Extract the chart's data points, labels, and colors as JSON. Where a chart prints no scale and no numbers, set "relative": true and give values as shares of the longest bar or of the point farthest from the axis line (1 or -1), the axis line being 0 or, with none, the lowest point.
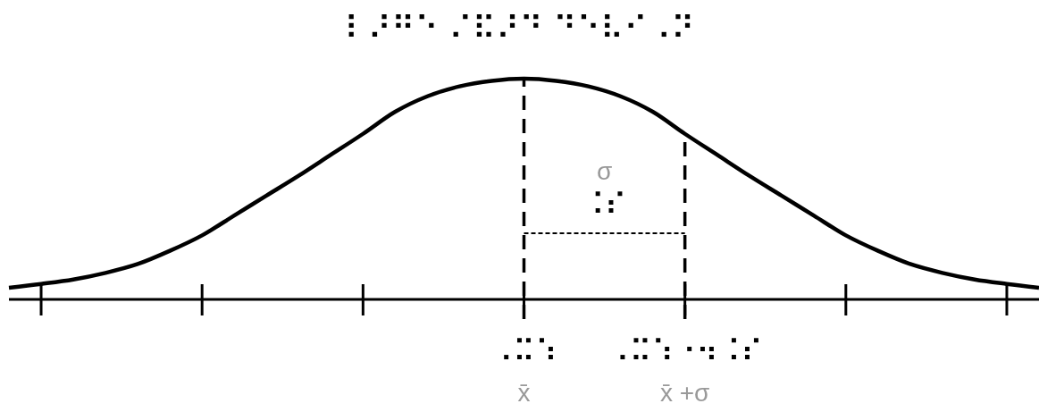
{
  "chart_data": {
    "type": "line",
    "title": "⠇⠜⠛⠑ ⠌⠯⠜⠙ ⠙⠑⠧⠊⠠⠝",
    "relative": true,
    "categories": [
      null,
      null,
      null,
      null,
      null,
      null,
      null,
      null,
      null,
      null,
      null,
      null,
      null,
      null,
      null,
      null,
      "⠠⠭⠱\nx̄",
      null,
      null,
      null,
      null,
      "⠠⠭⠱⠐⠲⠨⠎\nx̄ +σ",
      null,
      null,
      null,
      null,
      null,
      null,
      null,
      null,
      null,
      null,
      null
    ],
    "series": [
      {
        "color": "#000000",
        "values": [
          0.053,
          0.07,
          0.09,
          0.12,
          0.16,
          0.22,
          0.29,
          0.38,
          0.47,
          0.56,
          0.655,
          0.75,
          0.85,
          0.92,
          0.965,
          0.99,
          1,
          0.99,
          0.965,
          0.92,
          0.85,
          0.75,
          0.655,
          0.56,
          0.47,
          0.38,
          0.29,
          0.22,
          0.16,
          0.12,
          0.09,
          0.07,
          0.053
        ]
      }
    ],
    "ref_lines": [
      {
        "axis": "x",
        "value": "⠠⠭⠱\nx̄",
        "line_style": "dashed"
      },
      {
        "axis": "x",
        "value": "⠠⠭⠱⠐⠲⠨⠎\nx̄ +σ",
        "line_style": "dashed"
      }
    ],
    "annotations": [
      "σ\n⠨⠎"
    ]
  }
}
